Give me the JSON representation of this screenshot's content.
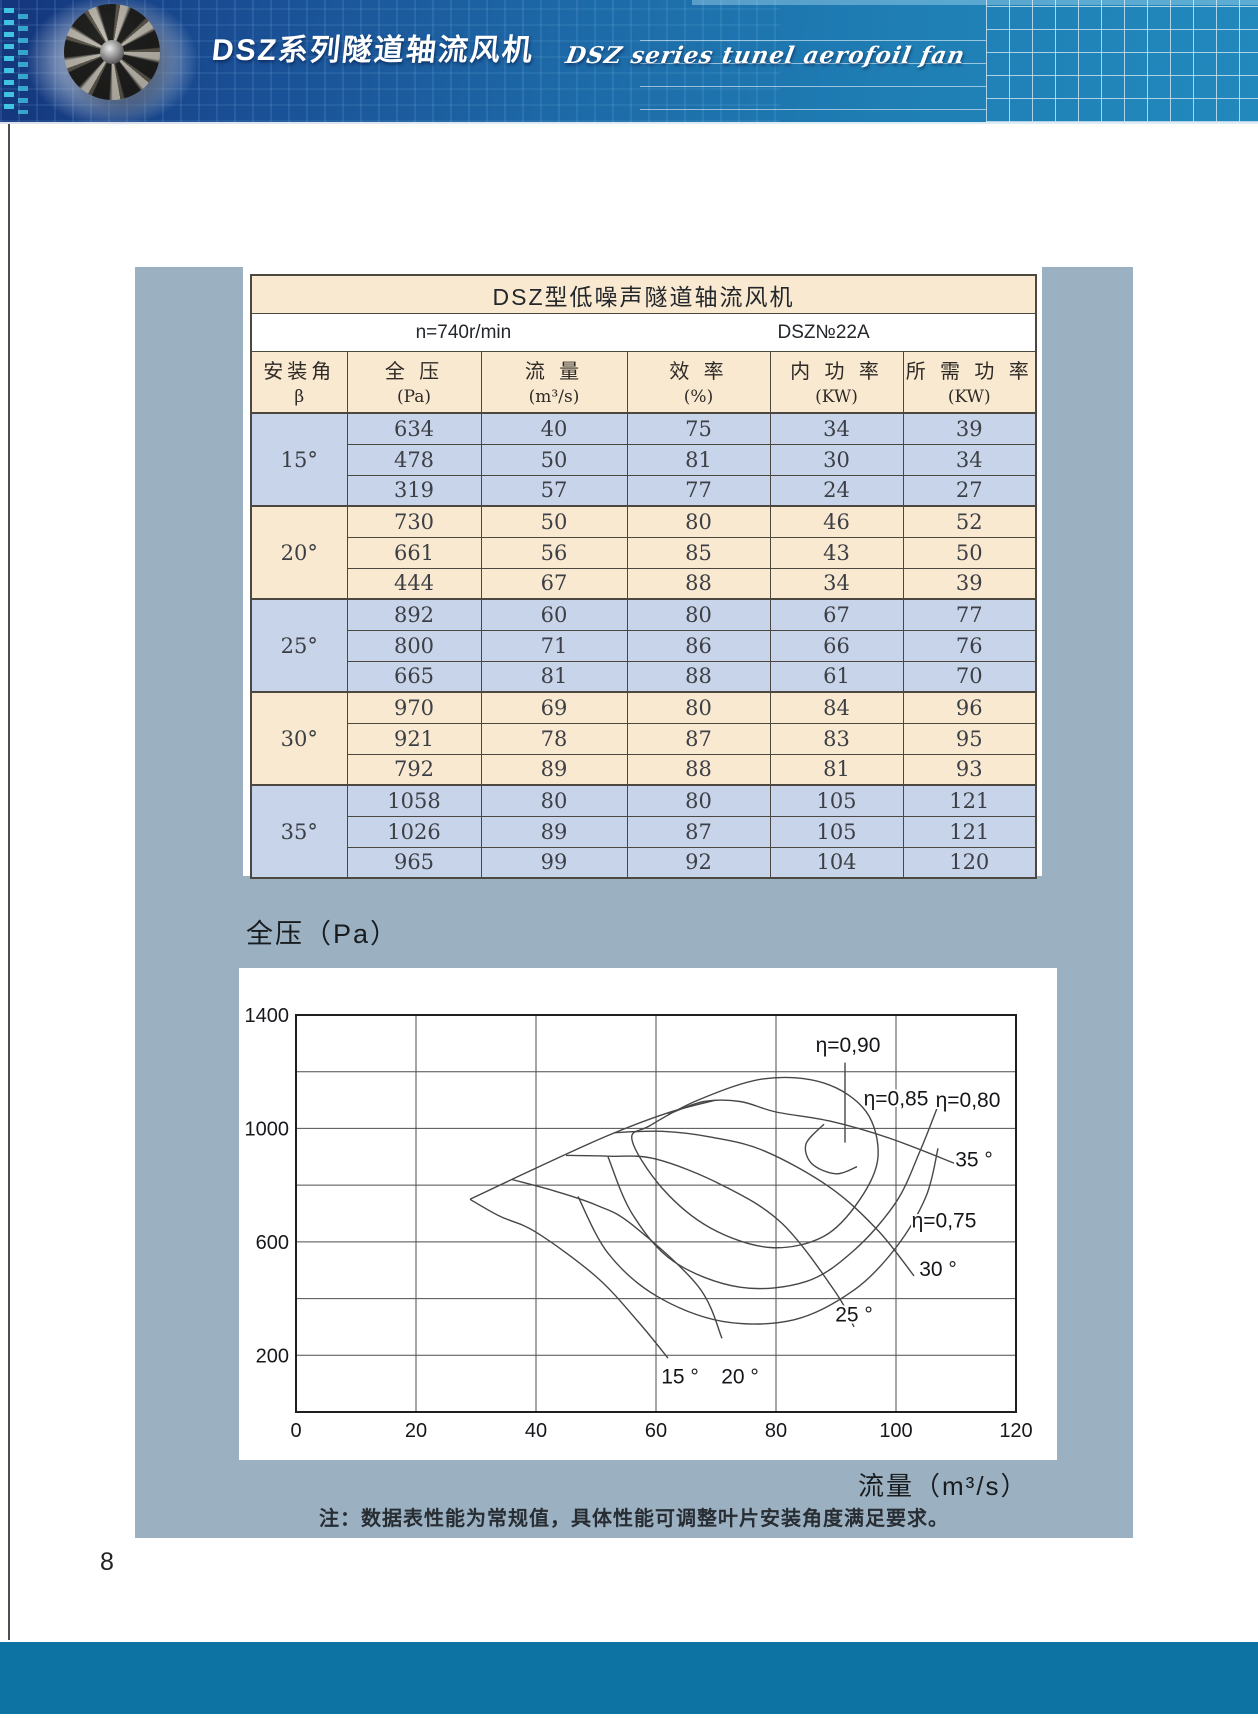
{
  "page": {
    "number": "8"
  },
  "banner": {
    "title_cn": "DSZ系列隧道轴流风机",
    "title_en": "DSZ series tunel aerofoil fan",
    "colors": {
      "deep": "#14357B",
      "mid": "#1D69A7",
      "light": "#2289BD",
      "squares": "#45D2EC"
    }
  },
  "table": {
    "title": "DSZ型低噪声隧道轴流风机",
    "subtitle_left": "n=740r/min",
    "subtitle_right": "DSZ№22A",
    "columns": [
      {
        "label": "安装角",
        "unit": "β"
      },
      {
        "label": "全 压",
        "unit": "(Pa)"
      },
      {
        "label": "流 量",
        "unit": "(m³/s)"
      },
      {
        "label": "效 率",
        "unit": "(%)"
      },
      {
        "label": "内 功 率",
        "unit": "(KW)"
      },
      {
        "label": "所 需 功 率",
        "unit": "(KW)"
      }
    ],
    "groups": [
      {
        "angle": "15°",
        "tone": "blue",
        "rows": [
          [
            634,
            40,
            75,
            34,
            39
          ],
          [
            478,
            50,
            81,
            30,
            34
          ],
          [
            319,
            57,
            77,
            24,
            27
          ]
        ]
      },
      {
        "angle": "20°",
        "tone": "cream",
        "rows": [
          [
            730,
            50,
            80,
            46,
            52
          ],
          [
            661,
            56,
            85,
            43,
            50
          ],
          [
            444,
            67,
            88,
            34,
            39
          ]
        ]
      },
      {
        "angle": "25°",
        "tone": "blue",
        "rows": [
          [
            892,
            60,
            80,
            67,
            77
          ],
          [
            800,
            71,
            86,
            66,
            76
          ],
          [
            665,
            81,
            88,
            61,
            70
          ]
        ]
      },
      {
        "angle": "30°",
        "tone": "cream",
        "rows": [
          [
            970,
            69,
            80,
            84,
            96
          ],
          [
            921,
            78,
            87,
            83,
            95
          ],
          [
            792,
            89,
            88,
            81,
            93
          ]
        ]
      },
      {
        "angle": "35°",
        "tone": "blue",
        "rows": [
          [
            1058,
            80,
            80,
            105,
            121
          ],
          [
            1026,
            89,
            87,
            105,
            121
          ],
          [
            965,
            99,
            92,
            104,
            120
          ]
        ]
      }
    ],
    "colors": {
      "cream": "#FAE9D1",
      "blue": "#C7D4E9",
      "border": "#4C483F"
    }
  },
  "chart_data": {
    "type": "line",
    "title": "",
    "ylabel": "全压（Pa）",
    "xlabel": "流量（m³/s）",
    "xlim": [
      0,
      120
    ],
    "ylim": [
      0,
      1400
    ],
    "xticks": [
      0,
      20,
      40,
      60,
      80,
      100,
      120
    ],
    "yticks_labeled": [
      1400,
      1000,
      600,
      200
    ],
    "y_grid_step": 200,
    "grid": true,
    "legend_position": "inline-labels",
    "series": [
      {
        "name": "15°",
        "label": "15 °",
        "label_pos": [
          64,
          100
        ],
        "points": [
          [
            29,
            750
          ],
          [
            34,
            690
          ],
          [
            40,
            634
          ],
          [
            50,
            478
          ],
          [
            57,
            319
          ],
          [
            62,
            190
          ]
        ],
        "catalog_points": [
          [
            40,
            634
          ],
          [
            50,
            478
          ],
          [
            57,
            319
          ]
        ]
      },
      {
        "name": "20°",
        "label": "20 °",
        "label_pos": [
          74,
          100
        ],
        "points": [
          [
            36,
            820
          ],
          [
            43,
            780
          ],
          [
            50,
            730
          ],
          [
            56,
            661
          ],
          [
            67,
            444
          ],
          [
            71,
            260
          ]
        ],
        "catalog_points": [
          [
            50,
            730
          ],
          [
            56,
            661
          ],
          [
            67,
            444
          ]
        ]
      },
      {
        "name": "25°",
        "label": "25 °",
        "label_pos": [
          93,
          320
        ],
        "points": [
          [
            45,
            905
          ],
          [
            52,
            902
          ],
          [
            60,
            892
          ],
          [
            71,
            800
          ],
          [
            81,
            665
          ],
          [
            90,
            420
          ],
          [
            93,
            300
          ]
        ],
        "catalog_points": [
          [
            60,
            892
          ],
          [
            71,
            800
          ],
          [
            81,
            665
          ]
        ]
      },
      {
        "name": "30°",
        "label": "30 °",
        "label_pos": [
          107,
          480
        ],
        "points": [
          [
            53,
            985
          ],
          [
            61,
            990
          ],
          [
            69,
            970
          ],
          [
            78,
            921
          ],
          [
            89,
            792
          ],
          [
            97,
            640
          ],
          [
            103,
            480
          ]
        ],
        "catalog_points": [
          [
            69,
            970
          ],
          [
            78,
            921
          ],
          [
            89,
            792
          ]
        ]
      },
      {
        "name": "35°",
        "label": "35 °",
        "label_pos": [
          113,
          865
        ],
        "points": [
          [
            62,
            1050
          ],
          [
            68,
            1095
          ],
          [
            74,
            1095
          ],
          [
            80,
            1058
          ],
          [
            89,
            1026
          ],
          [
            99,
            965
          ],
          [
            110,
            875
          ]
        ],
        "catalog_points": [
          [
            80,
            1058
          ],
          [
            89,
            1026
          ],
          [
            99,
            965
          ]
        ]
      }
    ],
    "envelope": {
      "points": [
        [
          29,
          750
        ],
        [
          40,
          860
        ],
        [
          52,
          975
        ],
        [
          62,
          1055
        ],
        [
          70,
          1100
        ]
      ]
    },
    "efficiency_contours": [
      {
        "label": "η=0,90",
        "label_pos": [
          92,
          1270
        ],
        "closed": false,
        "leader": [
          [
            91.5,
            1232
          ],
          [
            91.5,
            950
          ]
        ],
        "points": [
          [
            88,
            1015
          ],
          [
            85,
            945
          ],
          [
            86,
            875
          ],
          [
            90,
            840
          ],
          [
            93.5,
            865
          ]
        ]
      },
      {
        "label": "η=0,85",
        "label_pos": [
          100,
          1080
        ],
        "closed": true,
        "points": [
          [
            56,
            960
          ],
          [
            61,
            790
          ],
          [
            69,
            650
          ],
          [
            79,
            580
          ],
          [
            88,
            620
          ],
          [
            94,
            750
          ],
          [
            97,
            900
          ],
          [
            95,
            1060
          ],
          [
            88,
            1160
          ],
          [
            78,
            1175
          ],
          [
            67,
            1100
          ],
          [
            59,
            1010
          ]
        ]
      },
      {
        "label": "η=0,80",
        "label_pos": [
          112,
          1075
        ],
        "closed": false,
        "points": [
          [
            52,
            900
          ],
          [
            56,
            700
          ],
          [
            63,
            530
          ],
          [
            74,
            440
          ],
          [
            85,
            460
          ],
          [
            93,
            570
          ],
          [
            100,
            740
          ],
          [
            104,
            920
          ],
          [
            107,
            1080
          ]
        ]
      },
      {
        "label": "η=0,75",
        "label_pos": [
          108,
          650
        ],
        "closed": false,
        "points": [
          [
            47,
            760
          ],
          [
            52,
            560
          ],
          [
            60,
            410
          ],
          [
            71,
            320
          ],
          [
            83,
            325
          ],
          [
            93,
            430
          ],
          [
            100,
            580
          ],
          [
            105,
            760
          ],
          [
            107,
            930
          ]
        ]
      }
    ]
  },
  "note": "注：数据表性能为常规值，具体性能可调整叶片安装角度满足要求。",
  "panel_color": "#9BB0C1",
  "footer_color": "#0D73A3"
}
